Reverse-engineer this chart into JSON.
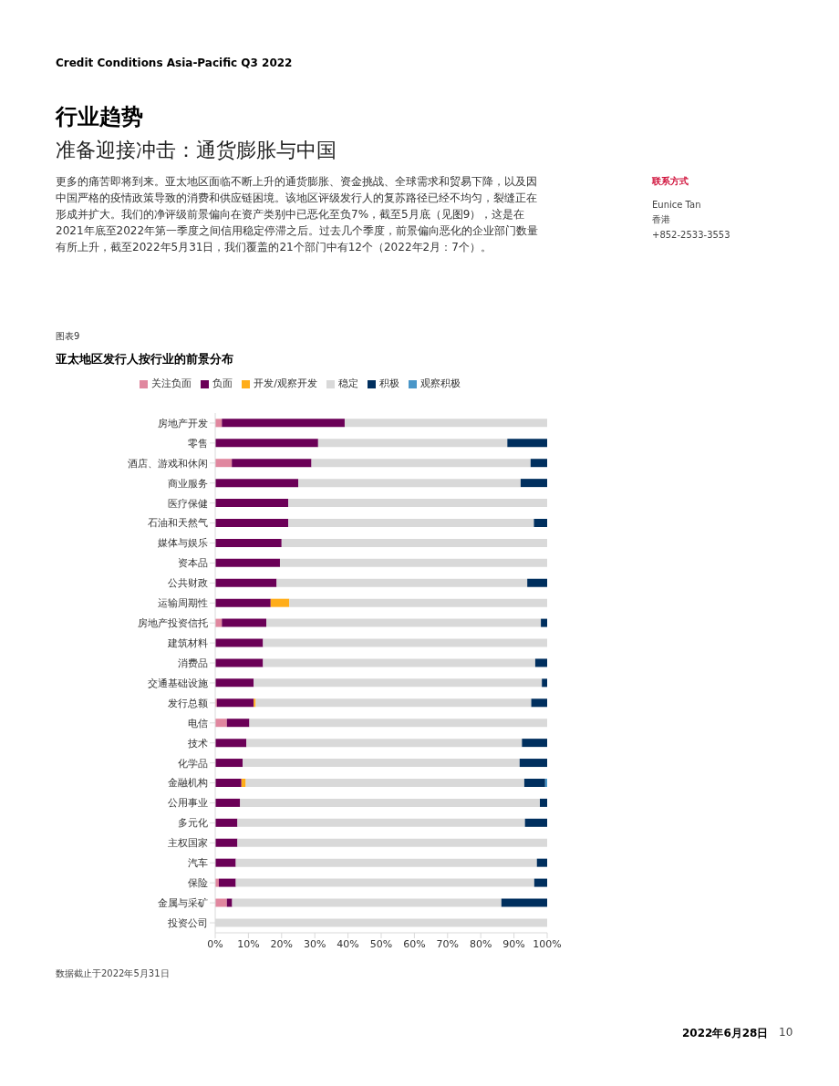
{
  "chart_data": {
    "type": "bar",
    "orientation": "horizontal",
    "stacked": true,
    "title": "亚太地区发行人按行业的前景分布",
    "categories": [
      "房地产开发",
      "零售",
      "酒店、游戏和休闲",
      "商业服务",
      "医疗保健",
      "石油和天然气",
      "媒体与娱乐",
      "资本品",
      "公共财政",
      "运输周期性",
      "房地产投资信托",
      "建筑材料",
      "消费品",
      "交通基础设施",
      "发行总额",
      "电信",
      "技术",
      "化学品",
      "金融机构",
      "公用事业",
      "多元化",
      "主权国家",
      "汽车",
      "保险",
      "金属与采矿",
      "投资公司"
    ],
    "series": [
      {
        "name": "关注负面",
        "color": "#e0879f",
        "values": [
          2,
          0,
          5,
          0,
          0,
          0,
          0,
          0,
          0,
          0,
          2,
          0,
          0,
          0,
          0.5,
          3.5,
          0,
          0,
          0,
          0,
          0,
          0,
          0,
          1.1,
          3.5,
          0
        ]
      },
      {
        "name": "负面",
        "color": "#6b0057",
        "values": [
          37,
          31,
          24,
          25,
          22,
          22,
          20,
          19.5,
          18.5,
          16.7,
          13.4,
          14.4,
          14.4,
          11.6,
          11.1,
          6.8,
          9.4,
          8.3,
          7.9,
          7.5,
          6.7,
          6.7,
          6.2,
          5.1,
          1.6,
          0
        ]
      },
      {
        "name": "开发/观察开发",
        "color": "#ffad1a",
        "values": [
          0,
          0,
          0,
          0,
          0,
          0,
          0,
          0,
          0,
          5.6,
          0,
          0,
          0,
          0,
          0.6,
          0,
          0,
          0,
          1.3,
          0,
          0,
          0,
          0,
          0,
          0,
          0
        ]
      },
      {
        "name": "稳定",
        "color": "#d9d9d9",
        "values": [
          61,
          57,
          66,
          67,
          78,
          74,
          80,
          80.5,
          75.5,
          77.7,
          82.7,
          85.6,
          82,
          86.8,
          83,
          89.7,
          83,
          83.4,
          83.9,
          90.3,
          86.6,
          93.3,
          90.7,
          89.9,
          81.1,
          100
        ]
      },
      {
        "name": "积极",
        "color": "#002f5e",
        "values": [
          0,
          12,
          5,
          8,
          0,
          4,
          0,
          0,
          6,
          0,
          1.9,
          0,
          3.6,
          1.6,
          4.8,
          0,
          7.6,
          8.3,
          6.3,
          2.2,
          6.7,
          0,
          3.1,
          3.9,
          13.8,
          0
        ]
      },
      {
        "name": "观察积极",
        "color": "#4a96c8",
        "values": [
          0,
          0,
          0,
          0,
          0,
          0,
          0,
          0,
          0,
          0,
          0,
          0,
          0,
          0,
          0,
          0,
          0,
          0,
          0.6,
          0,
          0,
          0,
          0,
          0,
          0,
          0
        ]
      }
    ],
    "xlim": [
      0,
      100
    ],
    "xticks": [
      {
        "value": 0,
        "label": "0%"
      },
      {
        "value": 10,
        "label": "10%"
      },
      {
        "value": 20,
        "label": "20%"
      },
      {
        "value": 30,
        "label": "30%"
      },
      {
        "value": 40,
        "label": "40%"
      },
      {
        "value": 50,
        "label": "50%"
      },
      {
        "value": 60,
        "label": "60%"
      },
      {
        "value": 70,
        "label": "70%"
      },
      {
        "value": 80,
        "label": "80%"
      },
      {
        "value": 90,
        "label": "90%"
      },
      {
        "value": 100,
        "label": "100%"
      }
    ],
    "legend": "top",
    "annotations": [
      "Credit Conditions Asia-Pacific Q3 2022",
      "行业趋势",
      "准备迎接冲击：通货膨胀与中国",
      "更多的痛苦即将到来。亚太地区面临不断上升的通货膨胀、资金挑战、全球需求和贸易下降，以及因中国严格的疫情政策导致的消费和供应链困境。该地区评级发行人的复苏路径已经不均匀，裂缝正在形成并扩大。我们的净评级前景偏向在资产类别中已恶化至负7%，截至5月底（见图9），这是在2021年底至2022年第一季度之间信用稳定停滞之后。过去几个季度，前景偏向恶化的企业部门数量有所上升，截至2022年5月31日，我们覆盖的21个部门中有12个（2022年2月：7个）。",
      "联系方式",
      "Eunice Tan",
      "香港",
      "+852-2533-3553",
      "图表9",
      "数据截止于2022年5月31日",
      "2022年6月28日",
      "10"
    ]
  }
}
